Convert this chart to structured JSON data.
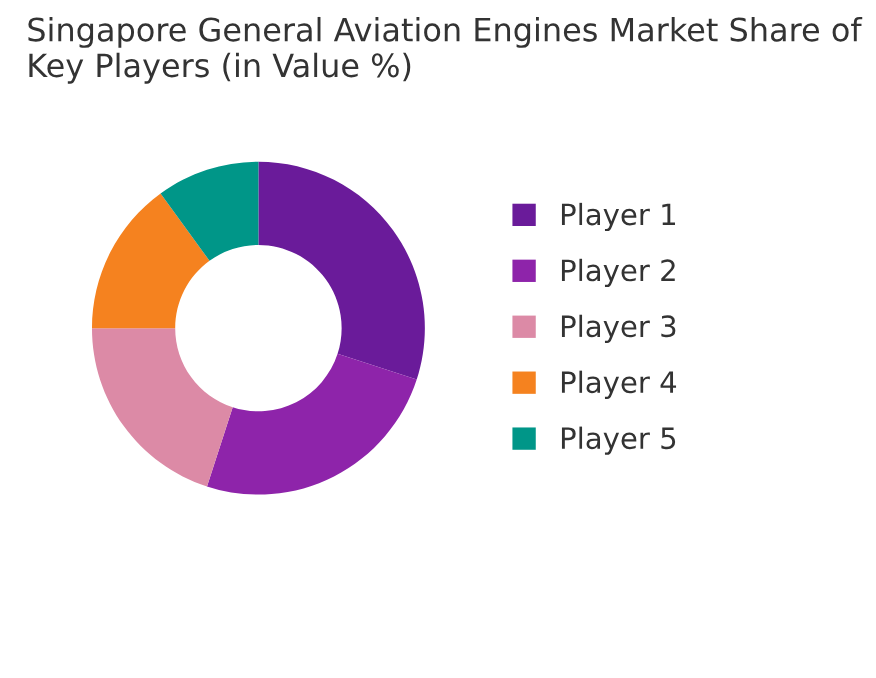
{
  "chart_data": {
    "type": "donut",
    "title": "Singapore General Aviation Engines Market Share of Key Players (in Value %)",
    "categories": [
      "Player 1",
      "Player 2",
      "Player 3",
      "Player 4",
      "Player 5"
    ],
    "values": [
      30,
      25,
      20,
      15,
      10
    ],
    "colors": [
      "#6a1b9a",
      "#8e24aa",
      "#dc8aa6",
      "#f5821f",
      "#009688"
    ],
    "legend": "right"
  }
}
